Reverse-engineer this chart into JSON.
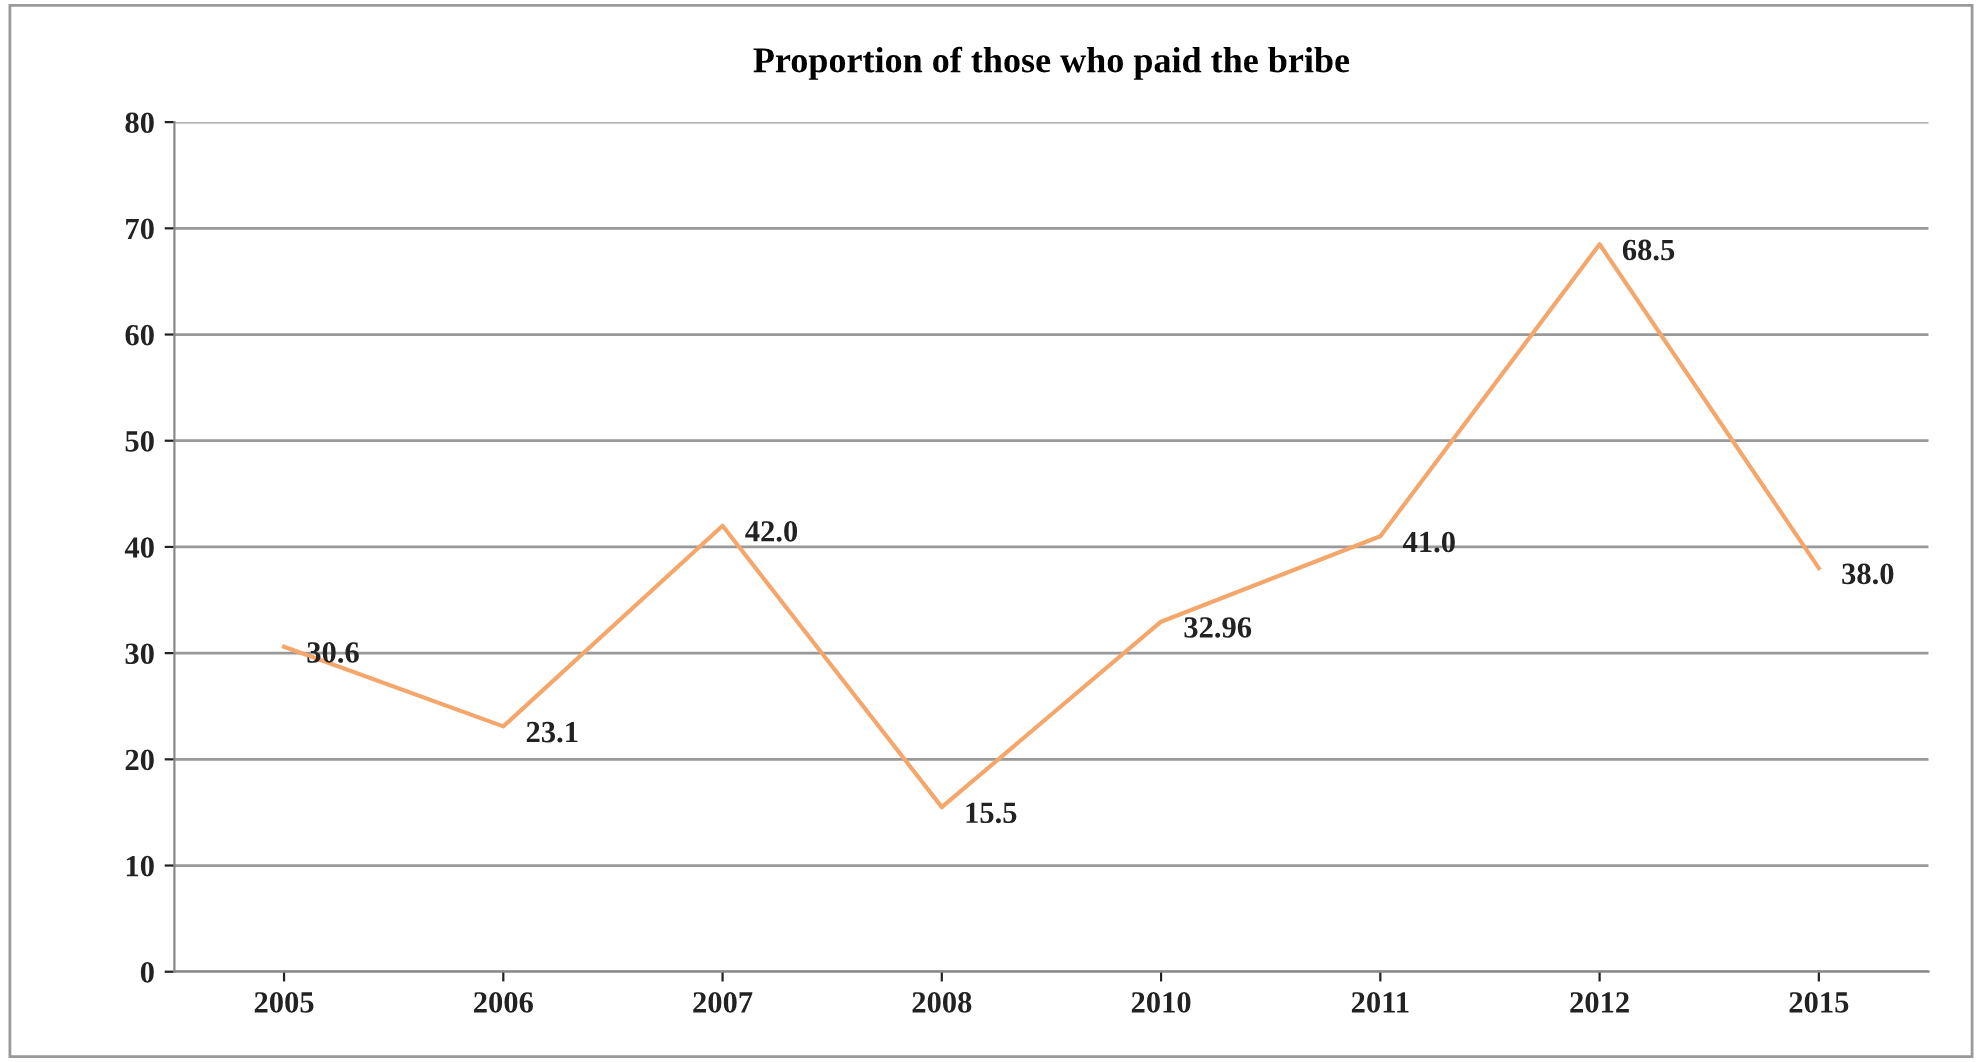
{
  "chart_data": {
    "type": "line",
    "title": "Proportion of those who paid the bribe",
    "categories": [
      "2005",
      "2006",
      "2007",
      "2008",
      "2010",
      "2011",
      "2012",
      "2015"
    ],
    "series": [
      {
        "color": "#f5a66b",
        "values": [
          30.6,
          23.1,
          42.0,
          15.5,
          32.96,
          41.0,
          68.5,
          38.0
        ],
        "value_labels": [
          "30.6",
          "23.1",
          "42.0",
          "15.5",
          "32.96",
          "41.0",
          "68.5",
          "38.0"
        ]
      }
    ],
    "ylim": [
      0,
      80
    ],
    "yticks": [
      0,
      10,
      20,
      30,
      40,
      50,
      60,
      70,
      80
    ],
    "grid": "y",
    "legend": false,
    "marker": "none",
    "line_style": "solid"
  }
}
